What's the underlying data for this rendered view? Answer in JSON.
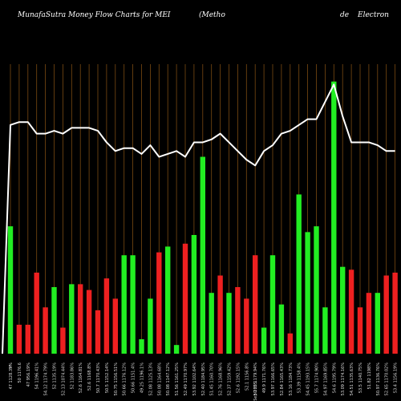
{
  "header": {
    "left_title": "MunafaSutra  Money Flow  Charts for MEI",
    "mid_title": "(Metho",
    "right_de": "de",
    "right_word": "Electron"
  },
  "chart_data": {
    "type": "bar",
    "title": "MunafaSutra Money Flow Charts for MEI",
    "colors": {
      "up": "#22ee22",
      "down": "#ee2020",
      "line": "#ffffff",
      "grid": "#7a4a12",
      "background": "#000000"
    },
    "ylim": [
      0,
      100
    ],
    "categories": [
      "47 1128.35%",
      "50 1176.6",
      "47 956.19%",
      "54 1196.41%",
      "54.12 1174.79%",
      "52 1135.19%",
      "52.13 1074.44%",
      "52 1183.86%",
      "52.6 1164.81%",
      "52.6 1168.8%",
      "50.7 1170.43%",
      "50.5 1152.14%",
      "50.75 1156.51%",
      "50.66 1176.12%",
      "50.66 1151.4%",
      "49.25 1196.1%",
      "52.08 1125.13%",
      "50.08 1164.68%",
      "50.08 1147.12%",
      "51.56 1161.25%",
      "52.49 1170.97%",
      "53.92 1102.64%",
      "52.40 1184.95%",
      "51.45 1160.70%",
      "52.76 1168.96%",
      "52.37 1159.42%",
      "52.6 1192.15%",
      "52.1 1156.8%",
      "50.35 1179.94%",
      "49.9 1171.76%",
      "53.97 1166.65%",
      "52.84 1165.43%",
      "53.16 1184.73%",
      "53.39 1158.4%",
      "54.45 1193.15%",
      "55.7 1174.90%",
      "54.97 1169.85%",
      "54.6 1195.79%",
      "53.09 1174.16%",
      "54.51 1135.63%",
      "53.5 1140.75%",
      "51.82 1198%",
      "50.97 1136.76%",
      "52.65 1170.02%",
      "53.4 1156.19%"
    ],
    "bars": {
      "direction": [
        "up",
        "down",
        "down",
        "down",
        "down",
        "up",
        "down",
        "up",
        "down",
        "down",
        "down",
        "down",
        "down",
        "up",
        "up",
        "up",
        "up",
        "down",
        "up",
        "up",
        "down",
        "up",
        "up",
        "up",
        "down",
        "up",
        "down",
        "down",
        "down",
        "up",
        "up",
        "up",
        "down",
        "up",
        "up",
        "up",
        "up",
        "up",
        "up",
        "down",
        "down",
        "down",
        "up",
        "down",
        "down"
      ],
      "values": [
        44,
        10,
        10,
        28,
        16,
        23,
        9,
        24,
        24,
        22,
        15,
        26,
        19,
        34,
        34,
        5,
        19,
        35,
        37,
        3,
        38,
        41,
        68,
        21,
        27,
        21,
        23,
        19,
        34,
        9,
        34,
        17,
        7,
        55,
        42,
        44,
        16,
        94,
        30,
        29,
        16,
        21,
        21,
        27,
        28
      ]
    },
    "line": [
      79,
      80,
      80,
      76,
      76,
      77,
      76,
      78,
      78,
      78,
      77,
      73,
      70,
      71,
      71,
      69,
      72,
      68,
      69,
      70,
      68,
      73,
      73,
      74,
      76,
      73,
      70,
      67,
      65,
      70,
      72,
      76,
      77,
      79,
      81,
      81,
      87,
      93,
      82,
      73,
      73,
      73,
      72,
      70,
      70
    ]
  },
  "footer": {
    "center_label": "Sep 2025",
    "left_mark": "S"
  }
}
